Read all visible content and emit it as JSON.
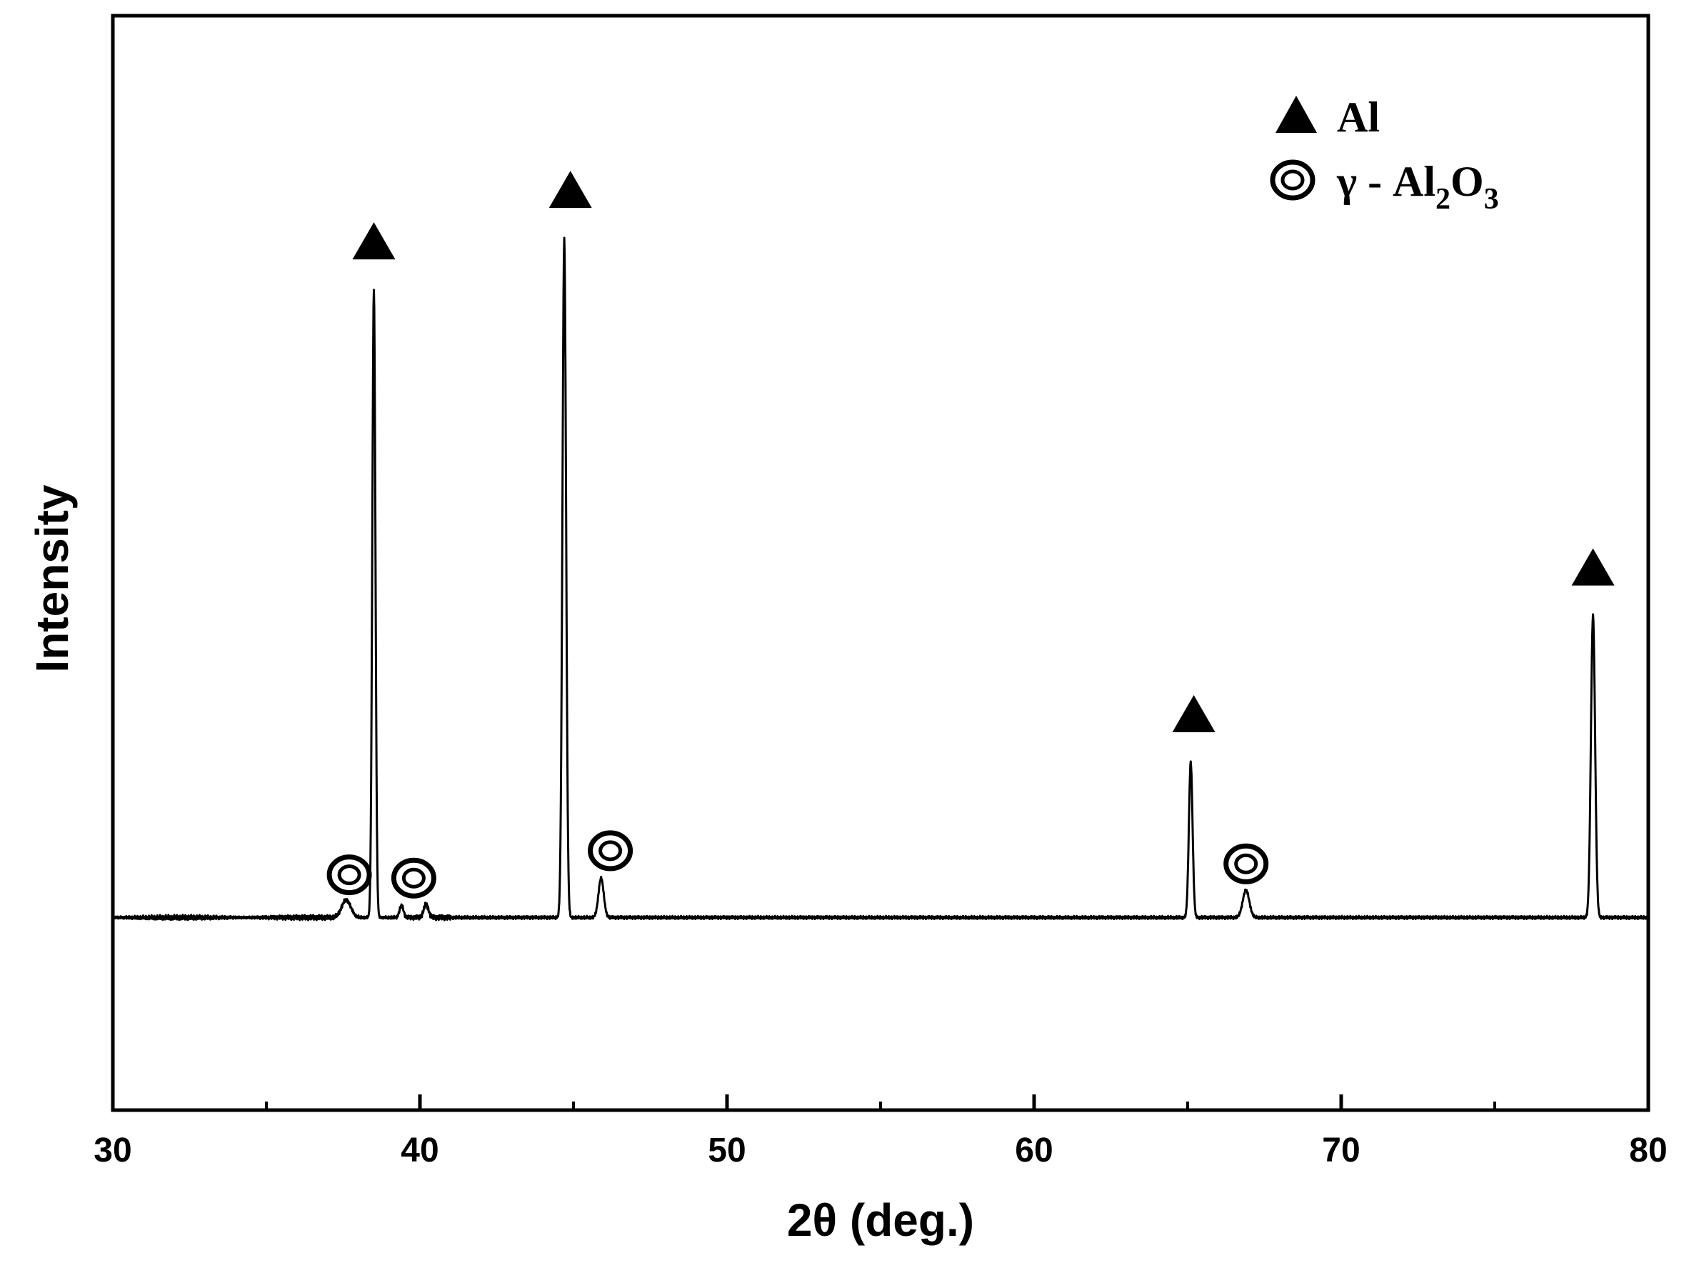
{
  "chart_data": {
    "type": "line",
    "title": "",
    "xlabel": "2θ (deg.)",
    "ylabel": "Intensity",
    "xlim": [
      30,
      80
    ],
    "ylim": [
      0,
      100
    ],
    "x_ticks": [
      30,
      40,
      50,
      60,
      70,
      80
    ],
    "x_tick_labels": [
      "30",
      "40",
      "50",
      "60",
      "70",
      "80"
    ],
    "x_minor_ticks": [
      35,
      45,
      55,
      65,
      75
    ],
    "y_ticks_shown": false,
    "grid": false,
    "legend_position": "top-right",
    "baseline": 17.6,
    "series": [
      {
        "line_color": "#000000",
        "peaks": [
          {
            "x": 37.6,
            "y": 19.2,
            "width": 0.35
          },
          {
            "x": 38.5,
            "y": 75.0,
            "width": 0.12
          },
          {
            "x": 39.4,
            "y": 18.7,
            "width": 0.15
          },
          {
            "x": 40.2,
            "y": 18.8,
            "width": 0.18
          },
          {
            "x": 44.7,
            "y": 79.6,
            "width": 0.14
          },
          {
            "x": 45.9,
            "y": 21.2,
            "width": 0.2
          },
          {
            "x": 65.1,
            "y": 31.8,
            "width": 0.14
          },
          {
            "x": 66.9,
            "y": 20.1,
            "width": 0.25
          },
          {
            "x": 78.2,
            "y": 45.2,
            "width": 0.16
          }
        ]
      }
    ],
    "annotations": [
      {
        "phase": "Al",
        "marker": "triangle",
        "x": 38.5,
        "y": 79.3
      },
      {
        "phase": "Al",
        "marker": "triangle",
        "x": 44.9,
        "y": 84.0
      },
      {
        "phase": "Al",
        "marker": "triangle",
        "x": 65.2,
        "y": 36.1
      },
      {
        "phase": "Al",
        "marker": "triangle",
        "x": 78.2,
        "y": 49.5
      },
      {
        "phase": "γ - Al2O3",
        "marker": "double-circle",
        "x": 37.7,
        "y": 21.5
      },
      {
        "phase": "γ - Al2O3",
        "marker": "double-circle",
        "x": 39.8,
        "y": 21.2
      },
      {
        "phase": "γ - Al2O3",
        "marker": "double-circle",
        "x": 46.2,
        "y": 23.7
      },
      {
        "phase": "γ - Al2O3",
        "marker": "double-circle",
        "x": 66.9,
        "y": 22.5
      }
    ],
    "legend": [
      {
        "marker": "triangle",
        "label": "Al"
      },
      {
        "marker": "double-circle",
        "label_main": "γ - Al",
        "sub1": "2",
        "mid": "O",
        "sub2": "3"
      }
    ]
  }
}
